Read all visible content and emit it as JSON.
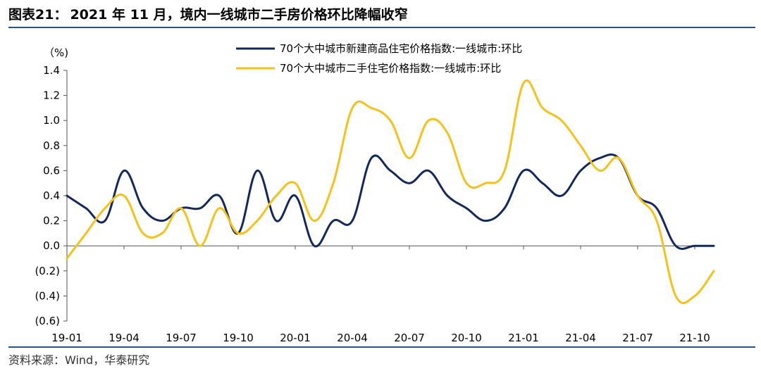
{
  "header": {
    "fig_label": "图表21：",
    "title": "2021 年 11 月，境内一线城市二手房价格环比降幅收窄"
  },
  "source": "资料来源：Wind，华泰研究",
  "chart_data": {
    "type": "line",
    "y_unit_label": "（%)",
    "ylim": [
      -0.6,
      1.4
    ],
    "y_ticks": [
      "1.4",
      "1.2",
      "1.0",
      "0.8",
      "0.6",
      "0.4",
      "0.2",
      "0.0",
      "(0.2)",
      "(0.4)",
      "(0.6)"
    ],
    "y_tick_values": [
      1.4,
      1.2,
      1.0,
      0.8,
      0.6,
      0.4,
      0.2,
      0.0,
      -0.2,
      -0.4,
      -0.6
    ],
    "x_tick_labels": [
      "19-01",
      "19-04",
      "19-07",
      "19-10",
      "20-01",
      "20-04",
      "20-07",
      "20-10",
      "21-01",
      "21-04",
      "21-07",
      "21-10"
    ],
    "x_tick_indices": [
      0,
      3,
      6,
      9,
      12,
      15,
      18,
      21,
      24,
      27,
      30,
      33
    ],
    "categories": [
      "19-01",
      "19-02",
      "19-03",
      "19-04",
      "19-05",
      "19-06",
      "19-07",
      "19-08",
      "19-09",
      "19-10",
      "19-11",
      "19-12",
      "20-01",
      "20-02",
      "20-03",
      "20-04",
      "20-05",
      "20-06",
      "20-07",
      "20-08",
      "20-09",
      "20-10",
      "20-11",
      "20-12",
      "21-01",
      "21-02",
      "21-03",
      "21-04",
      "21-05",
      "21-06",
      "21-07",
      "21-08",
      "21-09",
      "21-10",
      "21-11"
    ],
    "legend_position": "top",
    "grid": false,
    "series": [
      {
        "name": "70个大中城市新建商品住宅价格指数:一线城市:环比",
        "color": "#13295e",
        "values": [
          0.4,
          0.3,
          0.2,
          0.6,
          0.3,
          0.2,
          0.3,
          0.3,
          0.4,
          0.1,
          0.6,
          0.2,
          0.4,
          0.0,
          0.2,
          0.2,
          0.7,
          0.6,
          0.5,
          0.6,
          0.4,
          0.3,
          0.2,
          0.3,
          0.6,
          0.5,
          0.4,
          0.6,
          0.7,
          0.7,
          0.4,
          0.3,
          0.0,
          0.0,
          0.0
        ]
      },
      {
        "name": "70个大中城市二手住宅价格指数:一线城市:环比",
        "color": "#f6c21a",
        "values": [
          -0.1,
          0.1,
          0.3,
          0.4,
          0.1,
          0.1,
          0.3,
          0.0,
          0.3,
          0.1,
          0.2,
          0.4,
          0.5,
          0.2,
          0.5,
          1.1,
          1.1,
          1.0,
          0.7,
          1.0,
          0.9,
          0.5,
          0.5,
          0.6,
          1.3,
          1.1,
          1.0,
          0.8,
          0.6,
          0.7,
          0.4,
          0.2,
          -0.4,
          -0.4,
          -0.2
        ]
      }
    ]
  }
}
